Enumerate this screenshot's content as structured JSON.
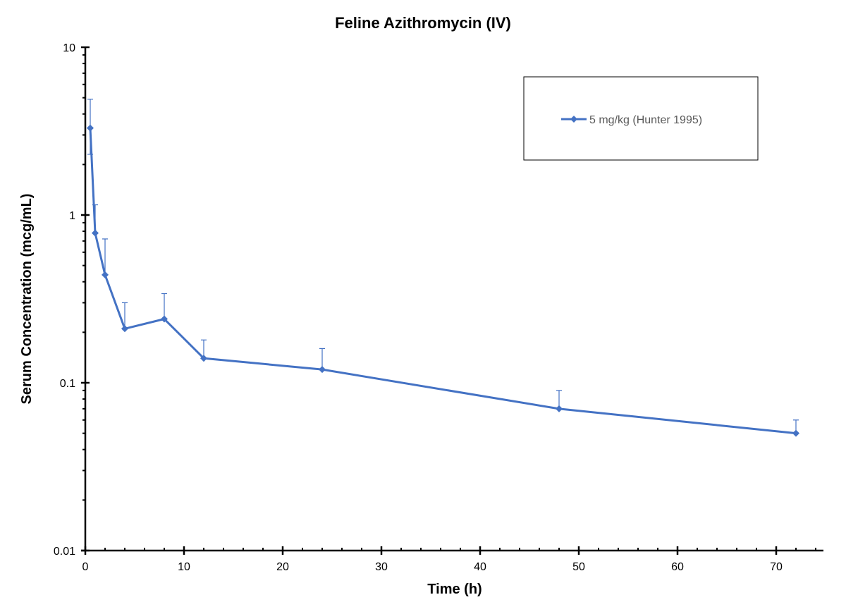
{
  "chart_data": {
    "type": "line",
    "title": "Feline Azithromycin (IV)",
    "xlabel": "Time (h)",
    "ylabel": "Serum Concentration (mcg/mL)",
    "xlim": [
      0,
      75
    ],
    "ylim": [
      0.01,
      10
    ],
    "yscale": "log",
    "x_ticks": [
      0,
      10,
      20,
      30,
      40,
      50,
      60,
      70
    ],
    "y_ticks": [
      0.01,
      0.1,
      1,
      10
    ],
    "y_tick_labels": [
      "0.01",
      "0.1",
      "1",
      "10"
    ],
    "grid": false,
    "legend_position": "upper right (boxed)",
    "series": [
      {
        "name": "5 mg/kg (Hunter 1995)",
        "color": "#4472C4",
        "marker": "diamond",
        "x": [
          0.5,
          1,
          2,
          4,
          8,
          12,
          24,
          48,
          72
        ],
        "values": [
          3.3,
          0.78,
          0.44,
          0.21,
          0.24,
          0.14,
          0.12,
          0.07,
          0.05
        ],
        "error_upper": [
          4.9,
          1.15,
          0.72,
          0.3,
          0.34,
          0.18,
          0.16,
          0.09,
          0.06
        ],
        "error_lower": [
          2.3,
          null,
          null,
          null,
          null,
          null,
          null,
          null,
          null
        ]
      }
    ]
  }
}
